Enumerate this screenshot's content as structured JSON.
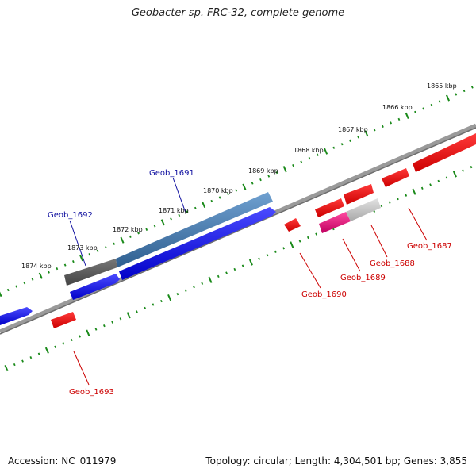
{
  "title": "Geobacter sp. FRC-32, complete genome",
  "footer": {
    "accession": "Accession: NC_011979",
    "summary": "Topology: circular; Length: 4,304,501 bp; Genes: 3,855"
  },
  "colors": {
    "forward_gene": "#1414e6",
    "reverse_gene": "#e81010",
    "selected_forward": "#4a7fb5",
    "selected_dark": "#5a5a5a",
    "selected_light": "#c8c8c8",
    "selected_pink": "#e0106a",
    "backbone": "#888888",
    "tick": "#1a8a1a",
    "label_forward": "#1010a0",
    "label_reverse": "#cc0000"
  },
  "scale_labels": [
    "1865 kbp",
    "1866 kbp",
    "1867 kbp",
    "1868 kbp",
    "1869 kbp",
    "1870 kbp",
    "1871 kbp",
    "1872 kbp",
    "1873 kbp",
    "1874 kbp"
  ],
  "gene_labels": {
    "forward": [
      "Geob_1691",
      "Geob_1692"
    ],
    "reverse": [
      "Geob_1687",
      "Geob_1688",
      "Geob_1689",
      "Geob_1690",
      "Geob_1693"
    ]
  }
}
